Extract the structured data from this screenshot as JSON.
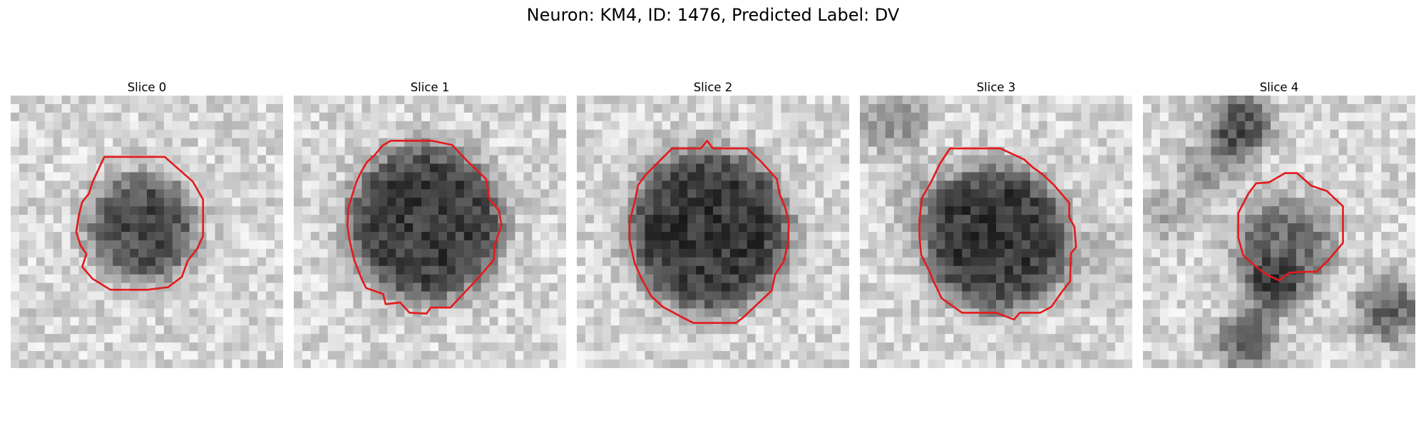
{
  "figure": {
    "title": "Neuron: KM4, ID: 1476, Predicted Label: DV"
  },
  "colors": {
    "contour": "#e41a1c",
    "background": "#ffffff",
    "colormap": "gray"
  },
  "panels": [
    {
      "title": "Slice 0",
      "image": {
        "grid": 32,
        "blob": {
          "cx": 15.5,
          "cy": 15.5,
          "r": 6.2,
          "depth": 0.55
        },
        "seed": 11
      },
      "contour": [
        [
          11.0,
          7.2
        ],
        [
          18.1,
          7.2
        ],
        [
          21.4,
          10.1
        ],
        [
          22.6,
          12.2
        ],
        [
          22.6,
          16.5
        ],
        [
          21.9,
          18.0
        ],
        [
          20.8,
          19.4
        ],
        [
          20.1,
          21.3
        ],
        [
          18.5,
          22.5
        ],
        [
          16.1,
          22.8
        ],
        [
          11.7,
          22.8
        ],
        [
          9.6,
          21.5
        ],
        [
          8.4,
          20.1
        ],
        [
          8.9,
          18.6
        ],
        [
          8.2,
          17.6
        ],
        [
          7.7,
          16.0
        ],
        [
          8.0,
          14.1
        ],
        [
          8.4,
          12.5
        ],
        [
          9.2,
          11.5
        ],
        [
          9.6,
          10.2
        ]
      ]
    },
    {
      "title": "Slice 1",
      "image": {
        "grid": 32,
        "blob": {
          "cx": 15.5,
          "cy": 15.0,
          "r": 9.0,
          "depth": 0.6
        },
        "seed": 23
      },
      "contour": [
        [
          11.4,
          5.3
        ],
        [
          16.2,
          5.3
        ],
        [
          18.6,
          5.8
        ],
        [
          20.2,
          7.5
        ],
        [
          22.6,
          9.8
        ],
        [
          23.0,
          12.2
        ],
        [
          24.1,
          13.5
        ],
        [
          24.4,
          15.2
        ],
        [
          23.6,
          17.6
        ],
        [
          23.5,
          19.3
        ],
        [
          21.6,
          21.5
        ],
        [
          20.1,
          23.1
        ],
        [
          18.4,
          24.9
        ],
        [
          16.1,
          24.9
        ],
        [
          15.6,
          25.6
        ],
        [
          13.6,
          25.5
        ],
        [
          12.5,
          24.3
        ],
        [
          10.8,
          24.5
        ],
        [
          10.5,
          23.3
        ],
        [
          8.5,
          22.6
        ],
        [
          8.0,
          21.6
        ],
        [
          7.1,
          19.3
        ],
        [
          6.6,
          17.2
        ],
        [
          6.3,
          15.3
        ],
        [
          6.4,
          13.2
        ],
        [
          6.9,
          11.6
        ],
        [
          7.3,
          10.3
        ],
        [
          7.9,
          9.0
        ],
        [
          8.6,
          7.8
        ],
        [
          9.5,
          7.0
        ],
        [
          10.4,
          5.9
        ]
      ]
    },
    {
      "title": "Slice 2",
      "image": {
        "grid": 32,
        "blob": {
          "cx": 15.5,
          "cy": 15.8,
          "r": 9.4,
          "depth": 0.62
        },
        "seed": 37
      },
      "contour": [
        [
          11.2,
          6.2
        ],
        [
          14.6,
          6.2
        ],
        [
          15.3,
          5.3
        ],
        [
          16.0,
          6.2
        ],
        [
          20.0,
          6.2
        ],
        [
          21.6,
          7.7
        ],
        [
          23.5,
          9.8
        ],
        [
          23.8,
          11.5
        ],
        [
          24.5,
          13.2
        ],
        [
          24.9,
          15.0
        ],
        [
          24.8,
          17.4
        ],
        [
          24.3,
          19.5
        ],
        [
          23.3,
          21.0
        ],
        [
          22.9,
          22.9
        ],
        [
          21.2,
          24.5
        ],
        [
          19.5,
          26.1
        ],
        [
          18.7,
          26.7
        ],
        [
          13.7,
          26.7
        ],
        [
          12.5,
          26.1
        ],
        [
          10.1,
          24.8
        ],
        [
          8.7,
          23.5
        ],
        [
          7.6,
          21.5
        ],
        [
          6.8,
          19.7
        ],
        [
          6.2,
          17.0
        ],
        [
          6.2,
          14.8
        ],
        [
          6.8,
          12.5
        ],
        [
          7.2,
          10.5
        ],
        [
          8.1,
          9.3
        ],
        [
          9.6,
          7.8
        ]
      ]
    },
    {
      "title": "Slice 3",
      "image": {
        "grid": 32,
        "blob": {
          "cx": 16.0,
          "cy": 16.8,
          "r": 8.4,
          "depth": 0.62
        },
        "seed": 51
      },
      "contour": [
        [
          10.6,
          6.2
        ],
        [
          16.5,
          6.2
        ],
        [
          19.3,
          7.5
        ],
        [
          20.4,
          8.5
        ],
        [
          21.4,
          9.2
        ],
        [
          22.8,
          10.5
        ],
        [
          24.6,
          12.6
        ],
        [
          24.6,
          14.3
        ],
        [
          25.2,
          15.4
        ],
        [
          25.4,
          17.8
        ],
        [
          24.8,
          18.5
        ],
        [
          24.7,
          21.8
        ],
        [
          23.7,
          23.1
        ],
        [
          22.5,
          24.8
        ],
        [
          21.2,
          25.5
        ],
        [
          18.8,
          25.5
        ],
        [
          18.1,
          26.3
        ],
        [
          16.0,
          25.5
        ],
        [
          12.0,
          25.5
        ],
        [
          9.6,
          23.8
        ],
        [
          8.7,
          21.9
        ],
        [
          8.1,
          20.5
        ],
        [
          7.2,
          18.7
        ],
        [
          7.0,
          16.5
        ],
        [
          7.0,
          14.6
        ],
        [
          7.3,
          12.0
        ],
        [
          8.4,
          10.1
        ],
        [
          9.4,
          8.0
        ]
      ]
    },
    {
      "title": "Slice 4",
      "image": {
        "grid": 32,
        "blob": {
          "cx": 16.5,
          "cy": 18.0,
          "r": 5.5,
          "depth": 0.42
        },
        "seed": 67
      },
      "contour": [
        [
          13.3,
          10.3
        ],
        [
          14.8,
          10.2
        ],
        [
          16.7,
          9.1
        ],
        [
          18.1,
          9.1
        ],
        [
          19.8,
          10.6
        ],
        [
          21.6,
          11.2
        ],
        [
          23.5,
          13.0
        ],
        [
          23.5,
          17.3
        ],
        [
          21.8,
          19.3
        ],
        [
          20.4,
          20.7
        ],
        [
          18.8,
          20.7
        ],
        [
          17.2,
          20.8
        ],
        [
          16.0,
          21.7
        ],
        [
          14.5,
          21.0
        ],
        [
          13.3,
          20.1
        ],
        [
          11.8,
          18.8
        ],
        [
          11.2,
          16.7
        ],
        [
          11.2,
          13.8
        ],
        [
          12.4,
          11.5
        ]
      ]
    }
  ]
}
